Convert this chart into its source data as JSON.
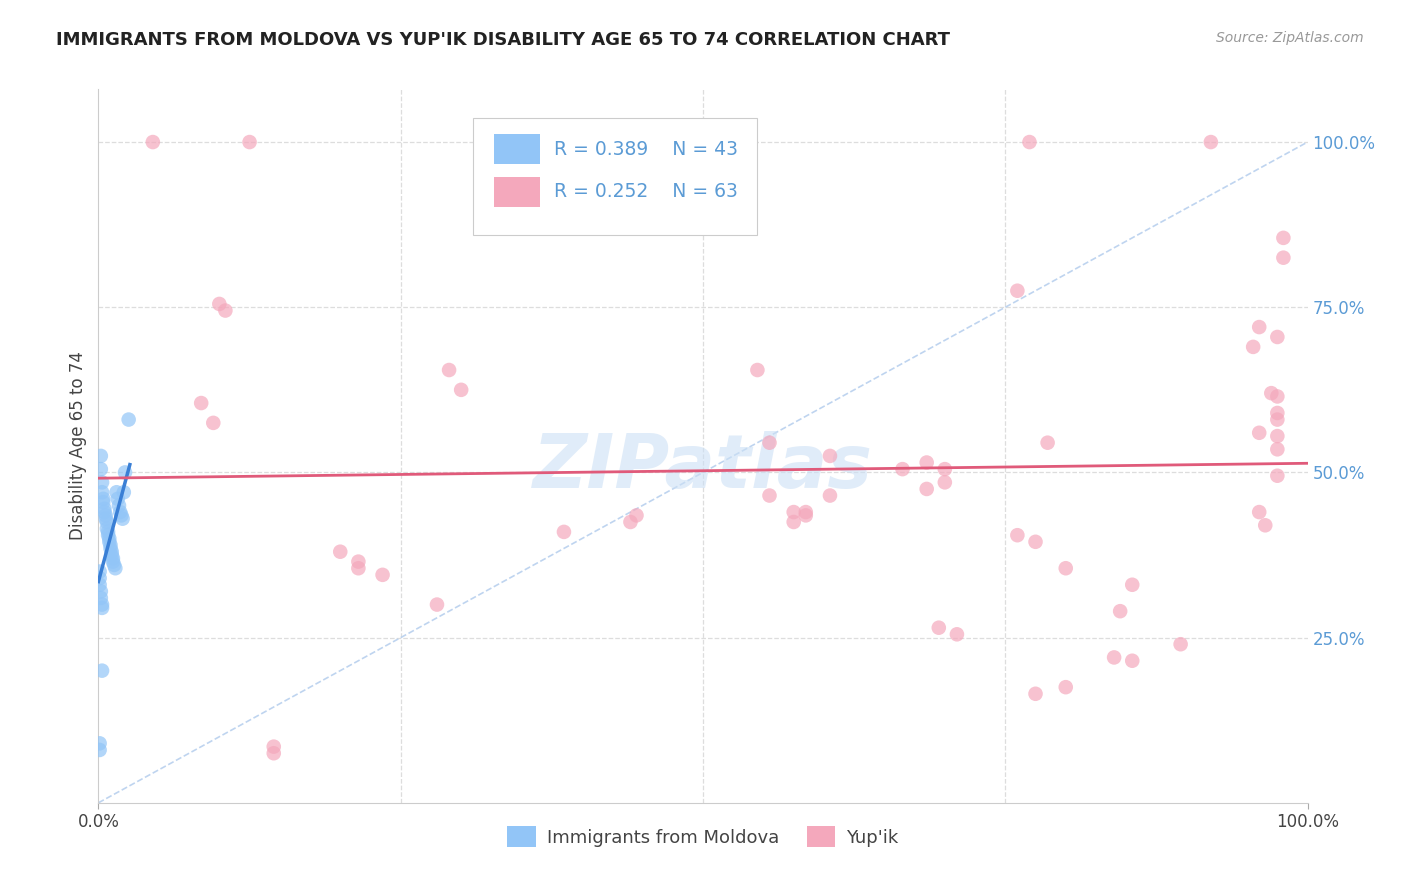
{
  "title": "IMMIGRANTS FROM MOLDOVA VS YUP'IK DISABILITY AGE 65 TO 74 CORRELATION CHART",
  "source": "Source: ZipAtlas.com",
  "ylabel": "Disability Age 65 to 74",
  "legend_label1": "Immigrants from Moldova",
  "legend_label2": "Yup'ik",
  "r1": "0.389",
  "n1": "43",
  "r2": "0.252",
  "n2": "63",
  "color_blue": "#92c5f7",
  "color_pink": "#f4a8bc",
  "color_blue_line": "#3a7fd5",
  "color_pink_line": "#e05a7a",
  "color_diagonal": "#b8d0ee",
  "watermark": "ZIPatlas",
  "right_tick_color": "#5b9bd5",
  "moldova_points": [
    [
      0.002,
      0.525
    ],
    [
      0.002,
      0.505
    ],
    [
      0.003,
      0.485
    ],
    [
      0.003,
      0.47
    ],
    [
      0.004,
      0.46
    ],
    [
      0.004,
      0.455
    ],
    [
      0.005,
      0.445
    ],
    [
      0.005,
      0.44
    ],
    [
      0.006,
      0.435
    ],
    [
      0.006,
      0.43
    ],
    [
      0.007,
      0.425
    ],
    [
      0.007,
      0.415
    ],
    [
      0.008,
      0.41
    ],
    [
      0.008,
      0.405
    ],
    [
      0.009,
      0.4
    ],
    [
      0.009,
      0.395
    ],
    [
      0.01,
      0.39
    ],
    [
      0.01,
      0.385
    ],
    [
      0.011,
      0.38
    ],
    [
      0.011,
      0.375
    ],
    [
      0.012,
      0.37
    ],
    [
      0.012,
      0.365
    ],
    [
      0.013,
      0.36
    ],
    [
      0.014,
      0.355
    ],
    [
      0.015,
      0.47
    ],
    [
      0.016,
      0.46
    ],
    [
      0.017,
      0.45
    ],
    [
      0.018,
      0.44
    ],
    [
      0.019,
      0.435
    ],
    [
      0.02,
      0.43
    ],
    [
      0.021,
      0.47
    ],
    [
      0.022,
      0.5
    ],
    [
      0.025,
      0.58
    ],
    [
      0.001,
      0.35
    ],
    [
      0.001,
      0.34
    ],
    [
      0.001,
      0.33
    ],
    [
      0.002,
      0.32
    ],
    [
      0.002,
      0.31
    ],
    [
      0.003,
      0.3
    ],
    [
      0.003,
      0.295
    ],
    [
      0.001,
      0.09
    ],
    [
      0.001,
      0.08
    ],
    [
      0.003,
      0.2
    ]
  ],
  "yupik_points": [
    [
      0.045,
      1.0
    ],
    [
      0.125,
      1.0
    ],
    [
      0.77,
      1.0
    ],
    [
      0.92,
      1.0
    ],
    [
      0.98,
      0.855
    ],
    [
      0.98,
      0.825
    ],
    [
      0.1,
      0.755
    ],
    [
      0.105,
      0.745
    ],
    [
      0.29,
      0.655
    ],
    [
      0.085,
      0.605
    ],
    [
      0.095,
      0.575
    ],
    [
      0.76,
      0.775
    ],
    [
      0.545,
      0.655
    ],
    [
      0.96,
      0.72
    ],
    [
      0.975,
      0.705
    ],
    [
      0.955,
      0.69
    ],
    [
      0.3,
      0.625
    ],
    [
      0.785,
      0.545
    ],
    [
      0.97,
      0.62
    ],
    [
      0.975,
      0.615
    ],
    [
      0.975,
      0.59
    ],
    [
      0.975,
      0.58
    ],
    [
      0.96,
      0.56
    ],
    [
      0.975,
      0.555
    ],
    [
      0.555,
      0.545
    ],
    [
      0.975,
      0.535
    ],
    [
      0.605,
      0.525
    ],
    [
      0.685,
      0.515
    ],
    [
      0.7,
      0.505
    ],
    [
      0.665,
      0.505
    ],
    [
      0.975,
      0.495
    ],
    [
      0.7,
      0.485
    ],
    [
      0.685,
      0.475
    ],
    [
      0.605,
      0.465
    ],
    [
      0.555,
      0.465
    ],
    [
      0.575,
      0.44
    ],
    [
      0.585,
      0.44
    ],
    [
      0.445,
      0.435
    ],
    [
      0.585,
      0.435
    ],
    [
      0.44,
      0.425
    ],
    [
      0.575,
      0.425
    ],
    [
      0.96,
      0.44
    ],
    [
      0.965,
      0.42
    ],
    [
      0.385,
      0.41
    ],
    [
      0.76,
      0.405
    ],
    [
      0.775,
      0.395
    ],
    [
      0.2,
      0.38
    ],
    [
      0.215,
      0.365
    ],
    [
      0.215,
      0.355
    ],
    [
      0.235,
      0.345
    ],
    [
      0.28,
      0.3
    ],
    [
      0.8,
      0.355
    ],
    [
      0.855,
      0.33
    ],
    [
      0.845,
      0.29
    ],
    [
      0.695,
      0.265
    ],
    [
      0.71,
      0.255
    ],
    [
      0.895,
      0.24
    ],
    [
      0.84,
      0.22
    ],
    [
      0.855,
      0.215
    ],
    [
      0.145,
      0.085
    ],
    [
      0.145,
      0.075
    ],
    [
      0.8,
      0.175
    ],
    [
      0.775,
      0.165
    ]
  ]
}
